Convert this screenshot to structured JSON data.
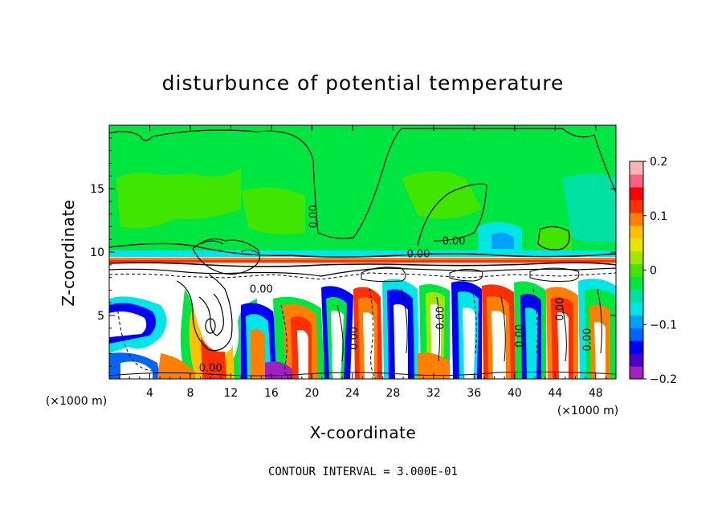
{
  "chart_data": {
    "type": "heatmap",
    "title": "disturbunce of potential temperature",
    "xlabel": "X-coordinate",
    "ylabel": "Z-coordinate",
    "x_unit": "(×1000 m)",
    "xlim": [
      0,
      50
    ],
    "ylim": [
      0,
      20
    ],
    "x_ticks": [
      4,
      8,
      12,
      16,
      20,
      24,
      28,
      32,
      36,
      40,
      44,
      48
    ],
    "y_ticks": [
      5,
      10,
      15
    ],
    "colorbar": {
      "range": [
        -0.2,
        0.2
      ],
      "ticks": [
        {
          "value": 0.2,
          "label": "0.2"
        },
        {
          "value": 0.1,
          "label": "0.1"
        },
        {
          "value": 0.0,
          "label": "0"
        },
        {
          "value": -0.1,
          "label": "−0.1"
        },
        {
          "value": -0.2,
          "label": "−0.2"
        }
      ],
      "colors": [
        "#a020c0",
        "#4b00c8",
        "#0000ff",
        "#0064ff",
        "#00a0ff",
        "#00e6e6",
        "#00e0a0",
        "#00e640",
        "#40e600",
        "#a0e600",
        "#e6e600",
        "#ffc000",
        "#ff8000",
        "#ff3000",
        "#ff0000",
        "#ff6080",
        "#ffb4b4"
      ]
    },
    "contour_interval_text": "CONTOUR INTERVAL = 3.000E-01",
    "contour_labels": [
      {
        "text": "0.00",
        "x": 20.5,
        "y": 12.8,
        "rotate": -90
      },
      {
        "text": "0.00",
        "x": 34.0,
        "y": 10.6,
        "rotate": 0
      },
      {
        "text": "0.00",
        "x": 30.5,
        "y": 9.6,
        "rotate": 0
      },
      {
        "text": "0.00",
        "x": 15.0,
        "y": 6.8,
        "rotate": 0
      },
      {
        "text": "0.00",
        "x": 10.0,
        "y": 0.6,
        "rotate": 0
      },
      {
        "text": "0.00",
        "x": 33.0,
        "y": 4.8,
        "rotate": -90
      },
      {
        "text": "0.00",
        "x": 24.5,
        "y": 3.2,
        "rotate": -90
      },
      {
        "text": "0.00",
        "x": 40.8,
        "y": 3.4,
        "rotate": -90
      },
      {
        "text": "0.00",
        "x": 44.8,
        "y": 5.5,
        "rotate": -90
      },
      {
        "text": "0.00",
        "x": 47.5,
        "y": 3.1,
        "rotate": -90
      }
    ]
  }
}
